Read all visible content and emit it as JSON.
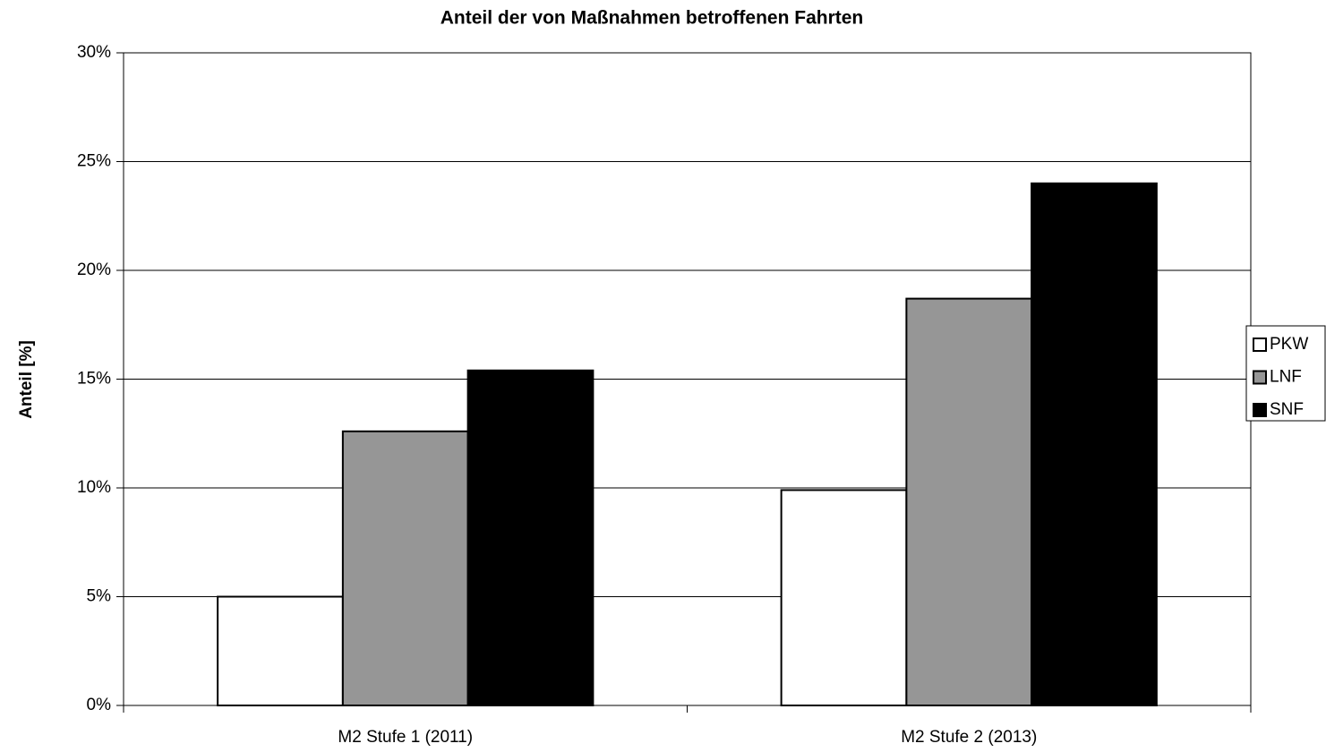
{
  "chart_data": {
    "type": "bar",
    "title": "Anteil der von Maßnahmen betroffenen Fahrten",
    "y_label": "Anteil [%]",
    "categories": [
      "M2 Stufe 1 (2011)",
      "M2 Stufe 2 (2013)"
    ],
    "series": [
      {
        "name": "PKW",
        "color": "#ffffff",
        "values": [
          5.0,
          9.9
        ]
      },
      {
        "name": "LNF",
        "color": "#969696",
        "values": [
          12.6,
          18.7
        ]
      },
      {
        "name": "SNF",
        "color": "#000000",
        "values": [
          15.4,
          24.0
        ]
      }
    ],
    "ylim": [
      0,
      30
    ],
    "yticks": [
      {
        "value": 0,
        "label": "0%"
      },
      {
        "value": 5,
        "label": "5%"
      },
      {
        "value": 10,
        "label": "10%"
      },
      {
        "value": 15,
        "label": "15%"
      },
      {
        "value": 20,
        "label": "20%"
      },
      {
        "value": 25,
        "label": "25%"
      },
      {
        "value": 30,
        "label": "30%"
      }
    ],
    "grid": true,
    "legend": "right"
  }
}
